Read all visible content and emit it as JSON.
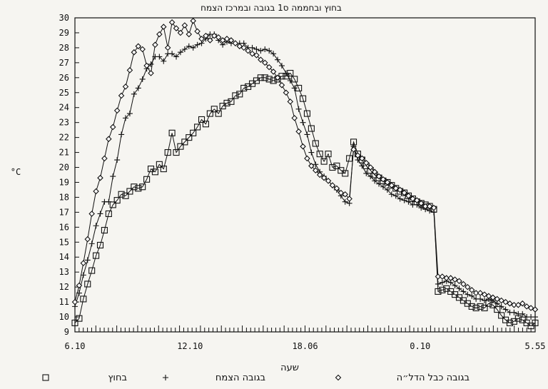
{
  "chart_data": {
    "type": "line",
    "title": "בחוץ ובחממה ס1 בגובה ובמרכז הצמח",
    "xlabel": "שעה",
    "ylabel": "°C",
    "ylim": [
      9,
      30
    ],
    "yticks": [
      9,
      10,
      11,
      12,
      13,
      14,
      15,
      16,
      17,
      18,
      19,
      20,
      21,
      22,
      23,
      24,
      25,
      26,
      27,
      28,
      29,
      30
    ],
    "xtick_labels": [
      "6.10",
      "12.10",
      "18.06",
      "0.10",
      "5.55"
    ],
    "grid": false,
    "legend_position": "bottom",
    "series": [
      {
        "name": "בחוץ",
        "marker": "square",
        "values": [
          9.6,
          9.9,
          11.2,
          12.2,
          13.1,
          14.1,
          14.8,
          15.8,
          16.9,
          17.5,
          17.8,
          18.2,
          18.1,
          18.4,
          18.7,
          18.6,
          18.7,
          19.2,
          19.9,
          19.7,
          20.2,
          19.9,
          21.0,
          22.3,
          21.0,
          21.4,
          21.7,
          22.0,
          22.3,
          22.7,
          23.2,
          22.9,
          23.6,
          23.9,
          23.6,
          24.1,
          24.3,
          24.4,
          24.8,
          24.9,
          25.3,
          25.4,
          25.6,
          25.8,
          26.0,
          26.0,
          25.9,
          25.8,
          25.9,
          26.1,
          26.1,
          26.3,
          25.9,
          25.3,
          24.6,
          23.6,
          22.6,
          21.6,
          20.9,
          20.4,
          20.9,
          20.0,
          20.1,
          19.8,
          19.6,
          20.6,
          21.7,
          20.9,
          20.5,
          20.1,
          19.8,
          19.5,
          19.3,
          19.1,
          19.0,
          18.8,
          18.6,
          18.4,
          18.3,
          18.1,
          17.9,
          17.7,
          17.6,
          17.5,
          17.4,
          17.2,
          11.7,
          11.8,
          11.9,
          11.7,
          11.5,
          11.3,
          11.1,
          10.9,
          10.7,
          10.6,
          10.7,
          10.6,
          10.9,
          10.8,
          10.5,
          10.1,
          9.8,
          9.6,
          9.7,
          9.9,
          9.8,
          9.6,
          9.4,
          9.6
        ]
      },
      {
        "name": "בגובה הצמח",
        "marker": "plus",
        "values": [
          10.7,
          11.6,
          12.8,
          13.8,
          14.9,
          16.1,
          16.9,
          17.7,
          17.7,
          19.4,
          20.5,
          22.2,
          23.3,
          23.6,
          24.9,
          25.3,
          25.9,
          26.6,
          26.9,
          27.4,
          27.4,
          27.1,
          27.6,
          27.6,
          27.4,
          27.7,
          27.9,
          28.1,
          28.0,
          28.2,
          28.3,
          28.6,
          28.9,
          28.9,
          28.5,
          28.2,
          28.4,
          28.3,
          28.3,
          28.3,
          28.3,
          28.0,
          28.0,
          27.9,
          27.8,
          27.9,
          27.8,
          27.6,
          27.2,
          26.8,
          26.3,
          25.8,
          25.3,
          23.9,
          23.0,
          22.2,
          21.0,
          20.2,
          19.7,
          19.4,
          19.1,
          18.8,
          18.5,
          18.1,
          17.7,
          17.6,
          21.4,
          20.5,
          20.1,
          19.6,
          19.4,
          19.1,
          18.9,
          18.7,
          18.5,
          18.2,
          18.1,
          17.9,
          17.8,
          17.7,
          17.5,
          17.5,
          17.3,
          17.2,
          17.1,
          17.0,
          12.2,
          12.3,
          12.4,
          12.3,
          12.1,
          11.9,
          11.7,
          11.5,
          11.4,
          11.2,
          11.2,
          11.1,
          11.2,
          11.1,
          10.9,
          10.7,
          10.5,
          10.3,
          10.3,
          10.2,
          10.2,
          10.0,
          10.0,
          10.0
        ]
      },
      {
        "name": "בגובה כבל הדל״ה",
        "marker": "diamond",
        "values": [
          11.0,
          12.1,
          13.6,
          15.2,
          16.9,
          18.4,
          19.3,
          20.6,
          21.9,
          22.7,
          23.8,
          24.8,
          25.4,
          26.5,
          27.7,
          28.1,
          27.9,
          26.8,
          26.3,
          28.2,
          28.9,
          29.4,
          28.0,
          29.7,
          29.3,
          29.0,
          29.5,
          28.9,
          29.8,
          29.1,
          28.6,
          28.8,
          28.5,
          28.8,
          28.7,
          28.5,
          28.6,
          28.5,
          28.3,
          28.1,
          28.0,
          27.8,
          27.6,
          27.5,
          27.2,
          27.0,
          26.7,
          26.4,
          26.0,
          25.5,
          25.0,
          24.4,
          23.3,
          22.4,
          21.4,
          20.6,
          20.1,
          19.8,
          19.5,
          19.3,
          19.1,
          18.8,
          18.6,
          18.3,
          18.2,
          17.9,
          21.2,
          20.8,
          20.6,
          20.3,
          20.0,
          19.7,
          19.4,
          19.2,
          19.0,
          18.8,
          18.6,
          18.5,
          18.3,
          18.1,
          17.9,
          17.8,
          17.6,
          17.4,
          17.4,
          17.3,
          12.7,
          12.7,
          12.6,
          12.6,
          12.5,
          12.4,
          12.2,
          12.0,
          11.8,
          11.6,
          11.6,
          11.5,
          11.4,
          11.3,
          11.2,
          11.1,
          11.0,
          10.9,
          10.8,
          10.8,
          10.9,
          10.7,
          10.6,
          10.5
        ]
      }
    ]
  }
}
